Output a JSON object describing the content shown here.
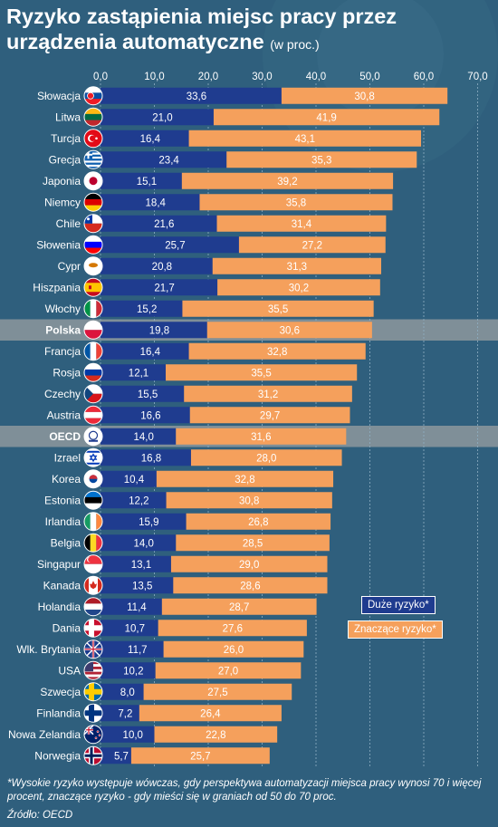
{
  "title": "Ryzyko zastąpienia miejsc pracy przez urządzenia automatyczne",
  "subtitle": "(w proc.)",
  "footnote": "*Wysokie ryzyko występuje wówczas, gdy perspektywa automatyzacji miejsca pracy wynosi 70 i więcej procent, znaczące ryzyko - gdy mieści się w graniach od 50 do 70 proc.",
  "source": "Źródło: OECD",
  "colors": {
    "high": "#1f3c8f",
    "significant": "#f5a05c",
    "background": "#2f5f7d",
    "highlight_row": "#7f8f98"
  },
  "chart_data": {
    "type": "bar",
    "orientation": "horizontal",
    "stacked": true,
    "xlim": [
      0,
      70
    ],
    "ticks": [
      "0,0",
      "10,0",
      "20,0",
      "30,0",
      "40,0",
      "50,0",
      "60,0",
      "70,0"
    ],
    "grid": true,
    "legend_position": "bottom-right",
    "categories": [
      "Słowacja",
      "Litwa",
      "Turcja",
      "Grecja",
      "Japonia",
      "Niemcy",
      "Chile",
      "Słowenia",
      "Cypr",
      "Hiszpania",
      "Włochy",
      "Polska",
      "Francja",
      "Rosja",
      "Czechy",
      "Austria",
      "OECD",
      "Izrael",
      "Korea",
      "Estonia",
      "Irlandia",
      "Belgia",
      "Singapur",
      "Kanada",
      "Holandia",
      "Dania",
      "Wlk. Brytania",
      "USA",
      "Szwecja",
      "Finlandia",
      "Nowa Zelandia",
      "Norwegia"
    ],
    "highlighted": [
      "Polska",
      "OECD"
    ],
    "series": [
      {
        "name": "Duże ryzyko*",
        "values": [
          33.6,
          21.0,
          16.4,
          23.4,
          15.1,
          18.4,
          21.6,
          25.7,
          20.8,
          21.7,
          15.2,
          19.8,
          16.4,
          12.1,
          15.5,
          16.6,
          14.0,
          16.8,
          10.4,
          12.2,
          15.9,
          14.0,
          13.1,
          13.5,
          11.4,
          10.7,
          11.7,
          10.2,
          8.0,
          7.2,
          10.0,
          5.7
        ]
      },
      {
        "name": "Znaczące ryzyko*",
        "values": [
          30.8,
          41.9,
          43.1,
          35.3,
          39.2,
          35.8,
          31.4,
          27.2,
          31.3,
          30.2,
          35.5,
          30.6,
          32.8,
          35.5,
          31.2,
          29.7,
          31.6,
          28.0,
          32.8,
          30.8,
          26.8,
          28.5,
          29.0,
          28.6,
          28.7,
          27.6,
          26.0,
          27.0,
          27.5,
          26.4,
          22.8,
          25.7
        ]
      }
    ],
    "labels_high": [
      "33,6",
      "21,0",
      "16,4",
      "23,4",
      "15,1",
      "18,4",
      "21,6",
      "25,7",
      "20,8",
      "21,7",
      "15,2",
      "19,8",
      "16,4",
      "12,1",
      "15,5",
      "16,6",
      "14,0",
      "16,8",
      "10,4",
      "12,2",
      "15,9",
      "14,0",
      "13,1",
      "13,5",
      "11,4",
      "10,7",
      "11,7",
      "10,2",
      "8,0",
      "7,2",
      "10,0",
      "5,7"
    ],
    "labels_significant": [
      "30,8",
      "41,9",
      "43,1",
      "35,3",
      "39,2",
      "35,8",
      "31,4",
      "27,2",
      "31,3",
      "30,2",
      "35,5",
      "30,6",
      "32,8",
      "35,5",
      "31,2",
      "29,7",
      "31,6",
      "28,0",
      "32,8",
      "30,8",
      "26,8",
      "28,5",
      "29,0",
      "28,6",
      "28,7",
      "27,6",
      "26,0",
      "27,0",
      "27,5",
      "26,4",
      "22,8",
      "25,7"
    ],
    "flags": [
      "sk",
      "lt",
      "tr",
      "gr",
      "jp",
      "de",
      "cl",
      "si",
      "cy",
      "es",
      "it",
      "pl",
      "fr",
      "ru",
      "cz",
      "at",
      "oecd",
      "il",
      "kr",
      "ee",
      "ie",
      "be",
      "sg",
      "ca",
      "nl",
      "dk",
      "gb",
      "us",
      "se",
      "fi",
      "nz",
      "no"
    ]
  }
}
